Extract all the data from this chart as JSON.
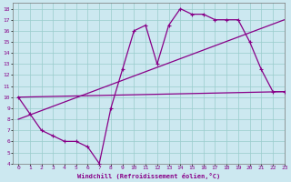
{
  "xlabel": "Windchill (Refroidissement éolien,°C)",
  "bg_color": "#cce8f0",
  "line_color": "#880088",
  "grid_color": "#99cccc",
  "xlim": [
    -0.5,
    23
  ],
  "ylim": [
    4,
    18.5
  ],
  "yticks": [
    4,
    5,
    6,
    7,
    8,
    9,
    10,
    11,
    12,
    13,
    14,
    15,
    16,
    17,
    18
  ],
  "xticks": [
    0,
    1,
    2,
    3,
    4,
    5,
    6,
    7,
    8,
    9,
    10,
    11,
    12,
    13,
    14,
    15,
    16,
    17,
    18,
    19,
    20,
    21,
    22,
    23
  ],
  "line1_x": [
    0,
    1,
    2,
    3,
    4,
    5,
    6,
    7,
    8,
    9,
    10,
    11,
    12,
    13,
    14,
    15,
    16,
    17,
    18,
    19,
    20,
    21,
    22,
    23
  ],
  "line1_y": [
    10,
    8.5,
    7,
    6.5,
    6,
    6,
    5.5,
    4,
    9,
    12.5,
    16,
    16.5,
    13,
    16.5,
    18,
    17.5,
    17.5,
    17,
    17,
    17,
    15,
    12.5,
    10.5,
    10.5
  ],
  "line2_x": [
    0,
    23
  ],
  "line2_y": [
    10,
    10.5
  ],
  "line3_x": [
    0,
    23
  ],
  "line3_y": [
    8.0,
    17.0
  ]
}
